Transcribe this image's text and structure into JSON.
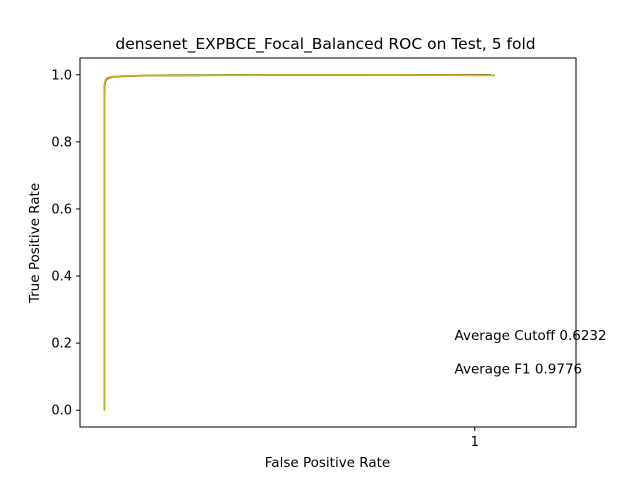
{
  "chart_data": {
    "type": "line",
    "title": "densenet_EXPBCE_Focal_Balanced ROC on Test, 5 fold",
    "xlabel": "False Positive Rate",
    "ylabel": "True Positive Rate",
    "xlim": [
      -0.95,
      1.5
    ],
    "ylim": [
      -0.05,
      1.05
    ],
    "xticks": [
      {
        "value": 1,
        "label": "1"
      }
    ],
    "yticks": [
      {
        "value": 0.0,
        "label": "0.0"
      },
      {
        "value": 0.2,
        "label": "0.2"
      },
      {
        "value": 0.4,
        "label": "0.4"
      },
      {
        "value": 0.6,
        "label": "0.6"
      },
      {
        "value": 0.8,
        "label": "0.8"
      },
      {
        "value": 1.0,
        "label": "1.0"
      }
    ],
    "grid": false,
    "legend": "none",
    "series": [
      {
        "color": "#1f77b4",
        "x": [
          -0.83,
          -0.83,
          -0.829,
          -0.826,
          -0.818,
          -0.8,
          -0.74,
          -0.6,
          -0.2,
          0.4,
          1.0,
          1.08
        ],
        "y": [
          0.0,
          0.93,
          0.965,
          0.98,
          0.988,
          0.993,
          0.996,
          0.998,
          0.999,
          0.9995,
          0.9998,
          0.9998
        ]
      },
      {
        "color": "#ff7f0e",
        "x": [
          -0.83,
          -0.83,
          -0.828,
          -0.824,
          -0.815,
          -0.79,
          -0.72,
          -0.55,
          -0.1,
          0.5,
          1.0,
          1.1
        ],
        "y": [
          0.0,
          0.94,
          0.968,
          0.982,
          0.99,
          0.994,
          0.997,
          0.998,
          0.999,
          0.9995,
          0.9982,
          0.9982
        ]
      },
      {
        "color": "#2ca02c",
        "x": [
          -0.83,
          -0.83,
          -0.827,
          -0.822,
          -0.81,
          -0.78,
          -0.7,
          -0.5,
          0.0,
          0.6,
          1.0,
          1.07
        ],
        "y": [
          0.0,
          0.95,
          0.972,
          0.985,
          0.991,
          0.995,
          0.997,
          0.999,
          0.9995,
          0.9998,
          0.9998,
          0.9998
        ]
      },
      {
        "color": "#d62728",
        "x": [
          -0.83,
          -0.83,
          -0.829,
          -0.825,
          -0.814,
          -0.79,
          -0.71,
          -0.52,
          -0.05,
          0.55,
          1.0,
          1.06
        ],
        "y": [
          0.0,
          0.935,
          0.966,
          0.981,
          0.989,
          0.994,
          0.996,
          0.998,
          0.999,
          0.9995,
          0.9994,
          0.9994
        ]
      },
      {
        "color": "#bcbd22",
        "x": [
          -0.83,
          -0.83,
          -0.828,
          -0.823,
          -0.812,
          -0.785,
          -0.705,
          -0.51,
          -0.02,
          0.58,
          1.0,
          1.09
        ],
        "y": [
          0.0,
          0.955,
          0.975,
          0.987,
          0.992,
          0.995,
          0.997,
          0.998,
          0.999,
          0.9996,
          0.9985,
          0.9985
        ]
      }
    ],
    "annotations": [
      {
        "text": "Average Cutoff 0.6232",
        "x": 0.9,
        "y": 0.21
      },
      {
        "text": "Average F1 0.9776",
        "x": 0.9,
        "y": 0.11
      }
    ]
  }
}
